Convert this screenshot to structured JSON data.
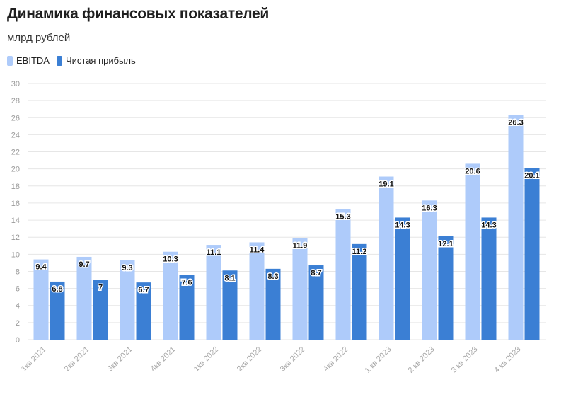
{
  "colors": {
    "ebitda": "#aecbfa",
    "net_profit": "#3b7fd4",
    "grid": "#e6e6e6"
  },
  "chart_data": {
    "type": "bar",
    "title": "Динамика финансовых показателей",
    "subtitle": "млрд рублей",
    "categories": [
      "1кв 2021",
      "2кв 2021",
      "3кв 2021",
      "4кв 2021",
      "1кв 2022",
      "2кв 2022",
      "3кв 2022",
      "4кв 2022",
      "1 кв 2023",
      "2 кв 2023",
      "3 кв 2023",
      "4 кв 2023"
    ],
    "series": [
      {
        "name": "EBITDA",
        "values": [
          9.4,
          9.7,
          9.3,
          10.3,
          11.1,
          11.4,
          11.9,
          15.3,
          19.1,
          16.3,
          20.6,
          26.3
        ]
      },
      {
        "name": "Чистая прибыль",
        "values": [
          6.8,
          7,
          6.7,
          7.6,
          8.1,
          8.3,
          8.7,
          11.2,
          14.3,
          12.1,
          14.3,
          20.1
        ]
      }
    ],
    "ylim": [
      0,
      30
    ],
    "yticks": [
      0,
      2,
      4,
      6,
      8,
      10,
      12,
      14,
      16,
      18,
      20,
      22,
      24,
      26,
      28,
      30
    ],
    "grid": true,
    "legend": "top-left"
  }
}
